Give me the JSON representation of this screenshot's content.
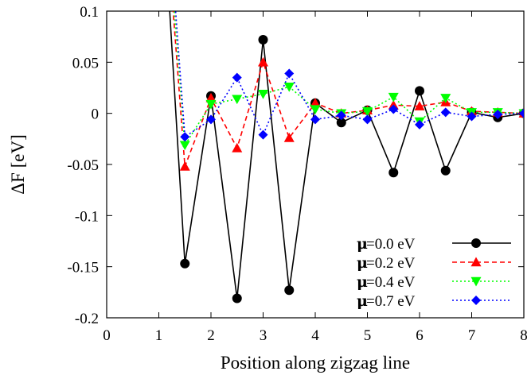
{
  "chart_data": {
    "type": "line",
    "xlabel": "Position along zigzag line",
    "ylabel": "ΔF [eV]",
    "xlim": [
      0,
      8
    ],
    "ylim": [
      -0.2,
      0.1
    ],
    "xticks": [
      "0",
      "1",
      "2",
      "3",
      "4",
      "5",
      "6",
      "7",
      "8"
    ],
    "yticks": [
      "0.1",
      "0.05",
      "0",
      "-0.05",
      "-0.1",
      "-0.15",
      "-0.2"
    ],
    "xtick_values": [
      0,
      1,
      2,
      3,
      4,
      5,
      6,
      7,
      8
    ],
    "ytick_values": [
      0.1,
      0.05,
      0,
      -0.05,
      -0.1,
      -0.15,
      -0.2
    ],
    "grid": false,
    "legend_position": "bottom-right",
    "series": [
      {
        "name": "=0.0 eV",
        "legend_symbol": "μ",
        "color": "#000000",
        "line_style": "solid",
        "marker": "circle",
        "points": [
          [
            1.15,
            0.15
          ],
          [
            1.5,
            -0.147
          ],
          [
            2.0,
            0.017
          ],
          [
            2.5,
            -0.181
          ],
          [
            3.0,
            0.072
          ],
          [
            3.5,
            -0.173
          ],
          [
            4.0,
            0.01
          ],
          [
            4.5,
            -0.009
          ],
          [
            5.0,
            0.003
          ],
          [
            5.5,
            -0.058
          ],
          [
            6.0,
            0.022
          ],
          [
            6.5,
            -0.056
          ],
          [
            7.0,
            0.001
          ],
          [
            7.5,
            -0.004
          ],
          [
            8.0,
            0.0
          ]
        ]
      },
      {
        "name": "=0.2 eV",
        "legend_symbol": "μ",
        "color": "#ff0000",
        "line_style": "dashed",
        "marker": "triangle-up",
        "points": [
          [
            1.2,
            0.15
          ],
          [
            1.5,
            -0.052
          ],
          [
            2.0,
            0.015
          ],
          [
            2.5,
            -0.034
          ],
          [
            3.0,
            0.05
          ],
          [
            3.5,
            -0.024
          ],
          [
            4.0,
            0.01
          ],
          [
            4.5,
            0.0
          ],
          [
            5.0,
            0.003
          ],
          [
            5.5,
            0.008
          ],
          [
            6.0,
            0.007
          ],
          [
            6.5,
            0.011
          ],
          [
            7.0,
            0.002
          ],
          [
            7.5,
            0.001
          ],
          [
            8.0,
            0.0
          ]
        ]
      },
      {
        "name": "=0.4 eV",
        "legend_symbol": "μ",
        "color": "#00ff00",
        "line_style": "dotted",
        "marker": "triangle-down",
        "points": [
          [
            1.22,
            0.15
          ],
          [
            1.5,
            -0.031
          ],
          [
            2.0,
            0.009
          ],
          [
            2.5,
            0.014
          ],
          [
            3.0,
            0.019
          ],
          [
            3.5,
            0.026
          ],
          [
            4.0,
            0.004
          ],
          [
            4.5,
            0.0
          ],
          [
            5.0,
            0.002
          ],
          [
            5.5,
            0.016
          ],
          [
            6.0,
            -0.008
          ],
          [
            6.5,
            0.015
          ],
          [
            7.0,
            0.001
          ],
          [
            7.5,
            0.001
          ],
          [
            8.0,
            0.0
          ]
        ]
      },
      {
        "name": "=0.7 eV",
        "legend_symbol": "μ",
        "color": "#0000ff",
        "line_style": "dotted",
        "marker": "diamond",
        "points": [
          [
            1.25,
            0.15
          ],
          [
            1.5,
            -0.023
          ],
          [
            2.0,
            -0.006
          ],
          [
            2.5,
            0.035
          ],
          [
            3.0,
            -0.021
          ],
          [
            3.5,
            0.039
          ],
          [
            4.0,
            -0.006
          ],
          [
            4.5,
            -0.002
          ],
          [
            5.0,
            -0.006
          ],
          [
            5.5,
            0.004
          ],
          [
            6.0,
            -0.011
          ],
          [
            6.5,
            0.001
          ],
          [
            7.0,
            -0.003
          ],
          [
            7.5,
            -0.001
          ],
          [
            8.0,
            0.0
          ]
        ]
      }
    ]
  }
}
